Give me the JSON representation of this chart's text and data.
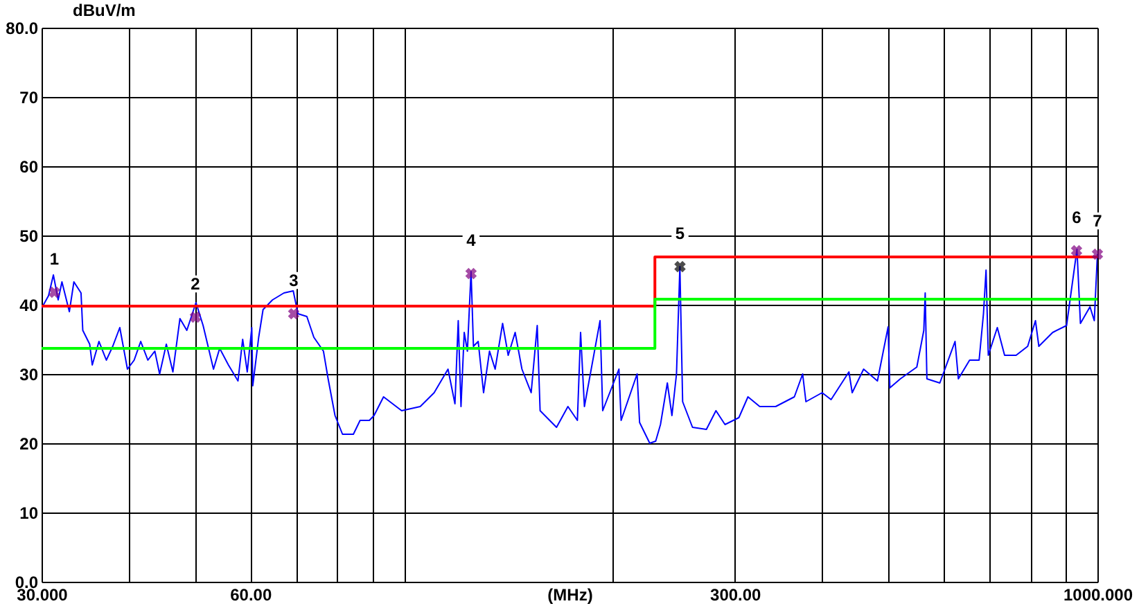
{
  "chart_data": {
    "type": "line",
    "xlabel": "(MHz)",
    "ylabel": "dBuV/m",
    "log": "x",
    "grid": true,
    "xlim": [
      30,
      1000
    ],
    "ylim": [
      0,
      80
    ],
    "xticks": [
      {
        "value": 30,
        "label": "30.000"
      },
      {
        "value": 40,
        "label": null
      },
      {
        "value": 50,
        "label": null
      },
      {
        "value": 60,
        "label": "60.00"
      },
      {
        "value": 70,
        "label": null
      },
      {
        "value": 80,
        "label": null
      },
      {
        "value": 90,
        "label": null
      },
      {
        "value": 100,
        "label": null
      },
      {
        "value": 200,
        "label": null
      },
      {
        "value": 300,
        "label": "300.00"
      },
      {
        "value": 400,
        "label": null
      },
      {
        "value": 500,
        "label": null
      },
      {
        "value": 600,
        "label": null
      },
      {
        "value": 700,
        "label": null
      },
      {
        "value": 800,
        "label": null
      },
      {
        "value": 900,
        "label": null
      },
      {
        "value": 1000,
        "label": "1000.000"
      }
    ],
    "yticks": [
      {
        "value": 0,
        "label": "0.0"
      },
      10,
      20,
      30,
      40,
      50,
      60,
      70,
      {
        "value": 80,
        "label": "80.0"
      }
    ],
    "series": [
      {
        "color": "#0000ff",
        "x": [
          30.0,
          30.7,
          31.2,
          31.7,
          32.1,
          32.9,
          33.4,
          34.2,
          34.4,
          35.2,
          35.5,
          36.3,
          37.2,
          38.0,
          38.9,
          39.9,
          40.8,
          41.7,
          42.7,
          43.7,
          44.4,
          45.4,
          46.4,
          47.5,
          48.6,
          50.1,
          51.3,
          53.1,
          54.2,
          55.8,
          57.6,
          58.5,
          59.4,
          60.3,
          60.5,
          61.7,
          62.6,
          64.6,
          67.1,
          69.2,
          70.3,
          72.4,
          74.1,
          76.5,
          77.7,
          79.5,
          81.5,
          84.5,
          86.4,
          89.1,
          90.5,
          93.4,
          99.2,
          105.5,
          110.5,
          115.7,
          118.4,
          119.7,
          120.8,
          122.1,
          123.4,
          124.9,
          125.9,
          127.9,
          130.2,
          132.8,
          135.3,
          138.7,
          141.3,
          144.6,
          147.9,
          152.5,
          155.6,
          157.1,
          165.9,
          172.3,
          177.8,
          179.7,
          182.0,
          191.7,
          193.4,
          204.1,
          205.6,
          216.8,
          218.6,
          226.1,
          230.6,
          234.3,
          239.7,
          243.4,
          247.1,
          249.9,
          252.2,
          260.6,
          272.9,
          281.7,
          290.3,
          304.0,
          313.3,
          325.8,
          343.5,
          365.5,
          375.7,
          379.8,
          400.8,
          412.9,
          438.1,
          442.9,
          460.0,
          481.6,
          499.0,
          501.9,
          519.7,
          548.9,
          561.8,
          564.4,
          567.6,
          592.5,
          623.2,
          630.1,
          654.1,
          675.1,
          684.9,
          690.8,
          696.0,
          717.1,
          734.7,
          763.3,
          793.3,
          814.0,
          823.2,
          862.0,
          902.6,
          934.3,
          945.1,
          975.6,
          989.6,
          1000
        ],
        "values": [
          39.5,
          41.3,
          44.3,
          40.7,
          43.3,
          39.0,
          43.3,
          41.7,
          36.3,
          34.3,
          31.3,
          34.7,
          32.0,
          34.0,
          36.7,
          30.7,
          32.0,
          34.7,
          32.0,
          33.3,
          30.0,
          34.3,
          30.3,
          38.0,
          36.3,
          40.3,
          37.0,
          30.7,
          33.7,
          31.3,
          29.0,
          35.0,
          30.3,
          36.7,
          28.3,
          35.3,
          39.3,
          40.7,
          41.7,
          42.0,
          38.7,
          38.3,
          35.3,
          33.3,
          29.3,
          24.0,
          21.3,
          21.3,
          23.3,
          23.3,
          24.0,
          26.7,
          24.7,
          25.3,
          27.3,
          30.7,
          25.7,
          37.7,
          25.3,
          36.0,
          33.3,
          44.8,
          34.0,
          34.7,
          27.3,
          33.3,
          30.7,
          37.3,
          32.7,
          36.0,
          30.7,
          27.3,
          37.0,
          24.7,
          22.3,
          25.3,
          23.3,
          36.0,
          25.3,
          37.7,
          24.7,
          30.7,
          23.3,
          30.0,
          23.0,
          20.0,
          20.3,
          22.7,
          28.7,
          24.0,
          30.0,
          45.5,
          26.0,
          22.3,
          22.0,
          24.7,
          22.7,
          23.7,
          26.7,
          25.3,
          25.3,
          26.7,
          30.0,
          26.0,
          27.3,
          26.3,
          30.3,
          27.3,
          30.7,
          29.0,
          36.8,
          28.0,
          29.3,
          31.0,
          36.3,
          41.7,
          29.3,
          28.7,
          34.7,
          29.3,
          32.0,
          32.0,
          38.7,
          45.0,
          32.7,
          36.7,
          32.7,
          32.7,
          34.0,
          37.7,
          34.0,
          36.0,
          37.0,
          48.0,
          37.3,
          39.7,
          37.7,
          47.3
        ]
      },
      {
        "color": "#ff0000",
        "x": [
          30,
          230,
          230,
          1000
        ],
        "values": [
          39.8,
          39.8,
          46.9,
          46.9
        ]
      },
      {
        "color": "#00ff00",
        "x": [
          30,
          230,
          230,
          1000
        ],
        "values": [
          33.7,
          33.7,
          40.8,
          40.8
        ]
      },
      {
        "type": "scatter",
        "marker": "cross",
        "x": [
          31.3,
          50.0,
          69.3,
          124.9,
          250.0,
          933.0,
          1000
        ],
        "values": [
          41.8,
          38.2,
          38.7,
          44.5,
          45.5,
          47.8,
          47.3
        ],
        "colors": [
          "#800080",
          "#800080",
          "#800080",
          "#800080",
          "#000000",
          "#800080",
          "#800080"
        ]
      }
    ],
    "annotations": [
      {
        "text": "1",
        "x": 31.3,
        "y": 41.8
      },
      {
        "text": "2",
        "x": 50.0,
        "y": 38.2
      },
      {
        "text": "3",
        "x": 69.3,
        "y": 38.7
      },
      {
        "text": "4",
        "x": 124.9,
        "y": 44.5
      },
      {
        "text": "5",
        "x": 250.0,
        "y": 45.5
      },
      {
        "text": "6",
        "x": 933.0,
        "y": 47.8
      },
      {
        "text": "7",
        "x": 1000,
        "y": 47.3
      }
    ]
  }
}
